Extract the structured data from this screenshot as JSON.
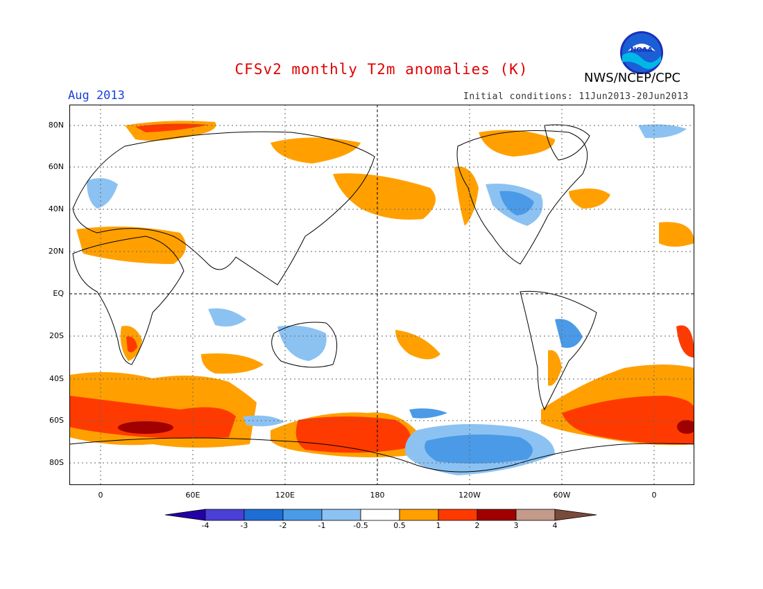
{
  "header": {
    "title": "CFSv2 monthly T2m anomalies (K)",
    "month": "Aug 2013",
    "organization": "NWS/NCEP/CPC",
    "initial_conditions": "Initial conditions: 11Jun2013-20Jun2013",
    "logo_text": "NOAA"
  },
  "map": {
    "lat_labels": [
      "80N",
      "60N",
      "40N",
      "20N",
      "EQ",
      "20S",
      "40S",
      "60S",
      "80S"
    ],
    "lon_labels": [
      "0",
      "60E",
      "120E",
      "180",
      "120W",
      "60W",
      "0"
    ],
    "colors": {
      "neg4": "#2400a8",
      "neg3": "#4a3fd6",
      "neg2": "#1e6ed6",
      "neg1": "#4a9ae8",
      "neg05": "#8cc2f2",
      "neutral": "#ffffff",
      "pos05": "#ffa000",
      "pos1": "#ff3a00",
      "pos2": "#a00000",
      "pos3": "#c49a8a",
      "pos4": "#7a4a3a"
    }
  },
  "colorbar": {
    "labels": [
      "-4",
      "-3",
      "-2",
      "-1",
      "-0.5",
      "0.5",
      "1",
      "2",
      "3",
      "4"
    ]
  }
}
